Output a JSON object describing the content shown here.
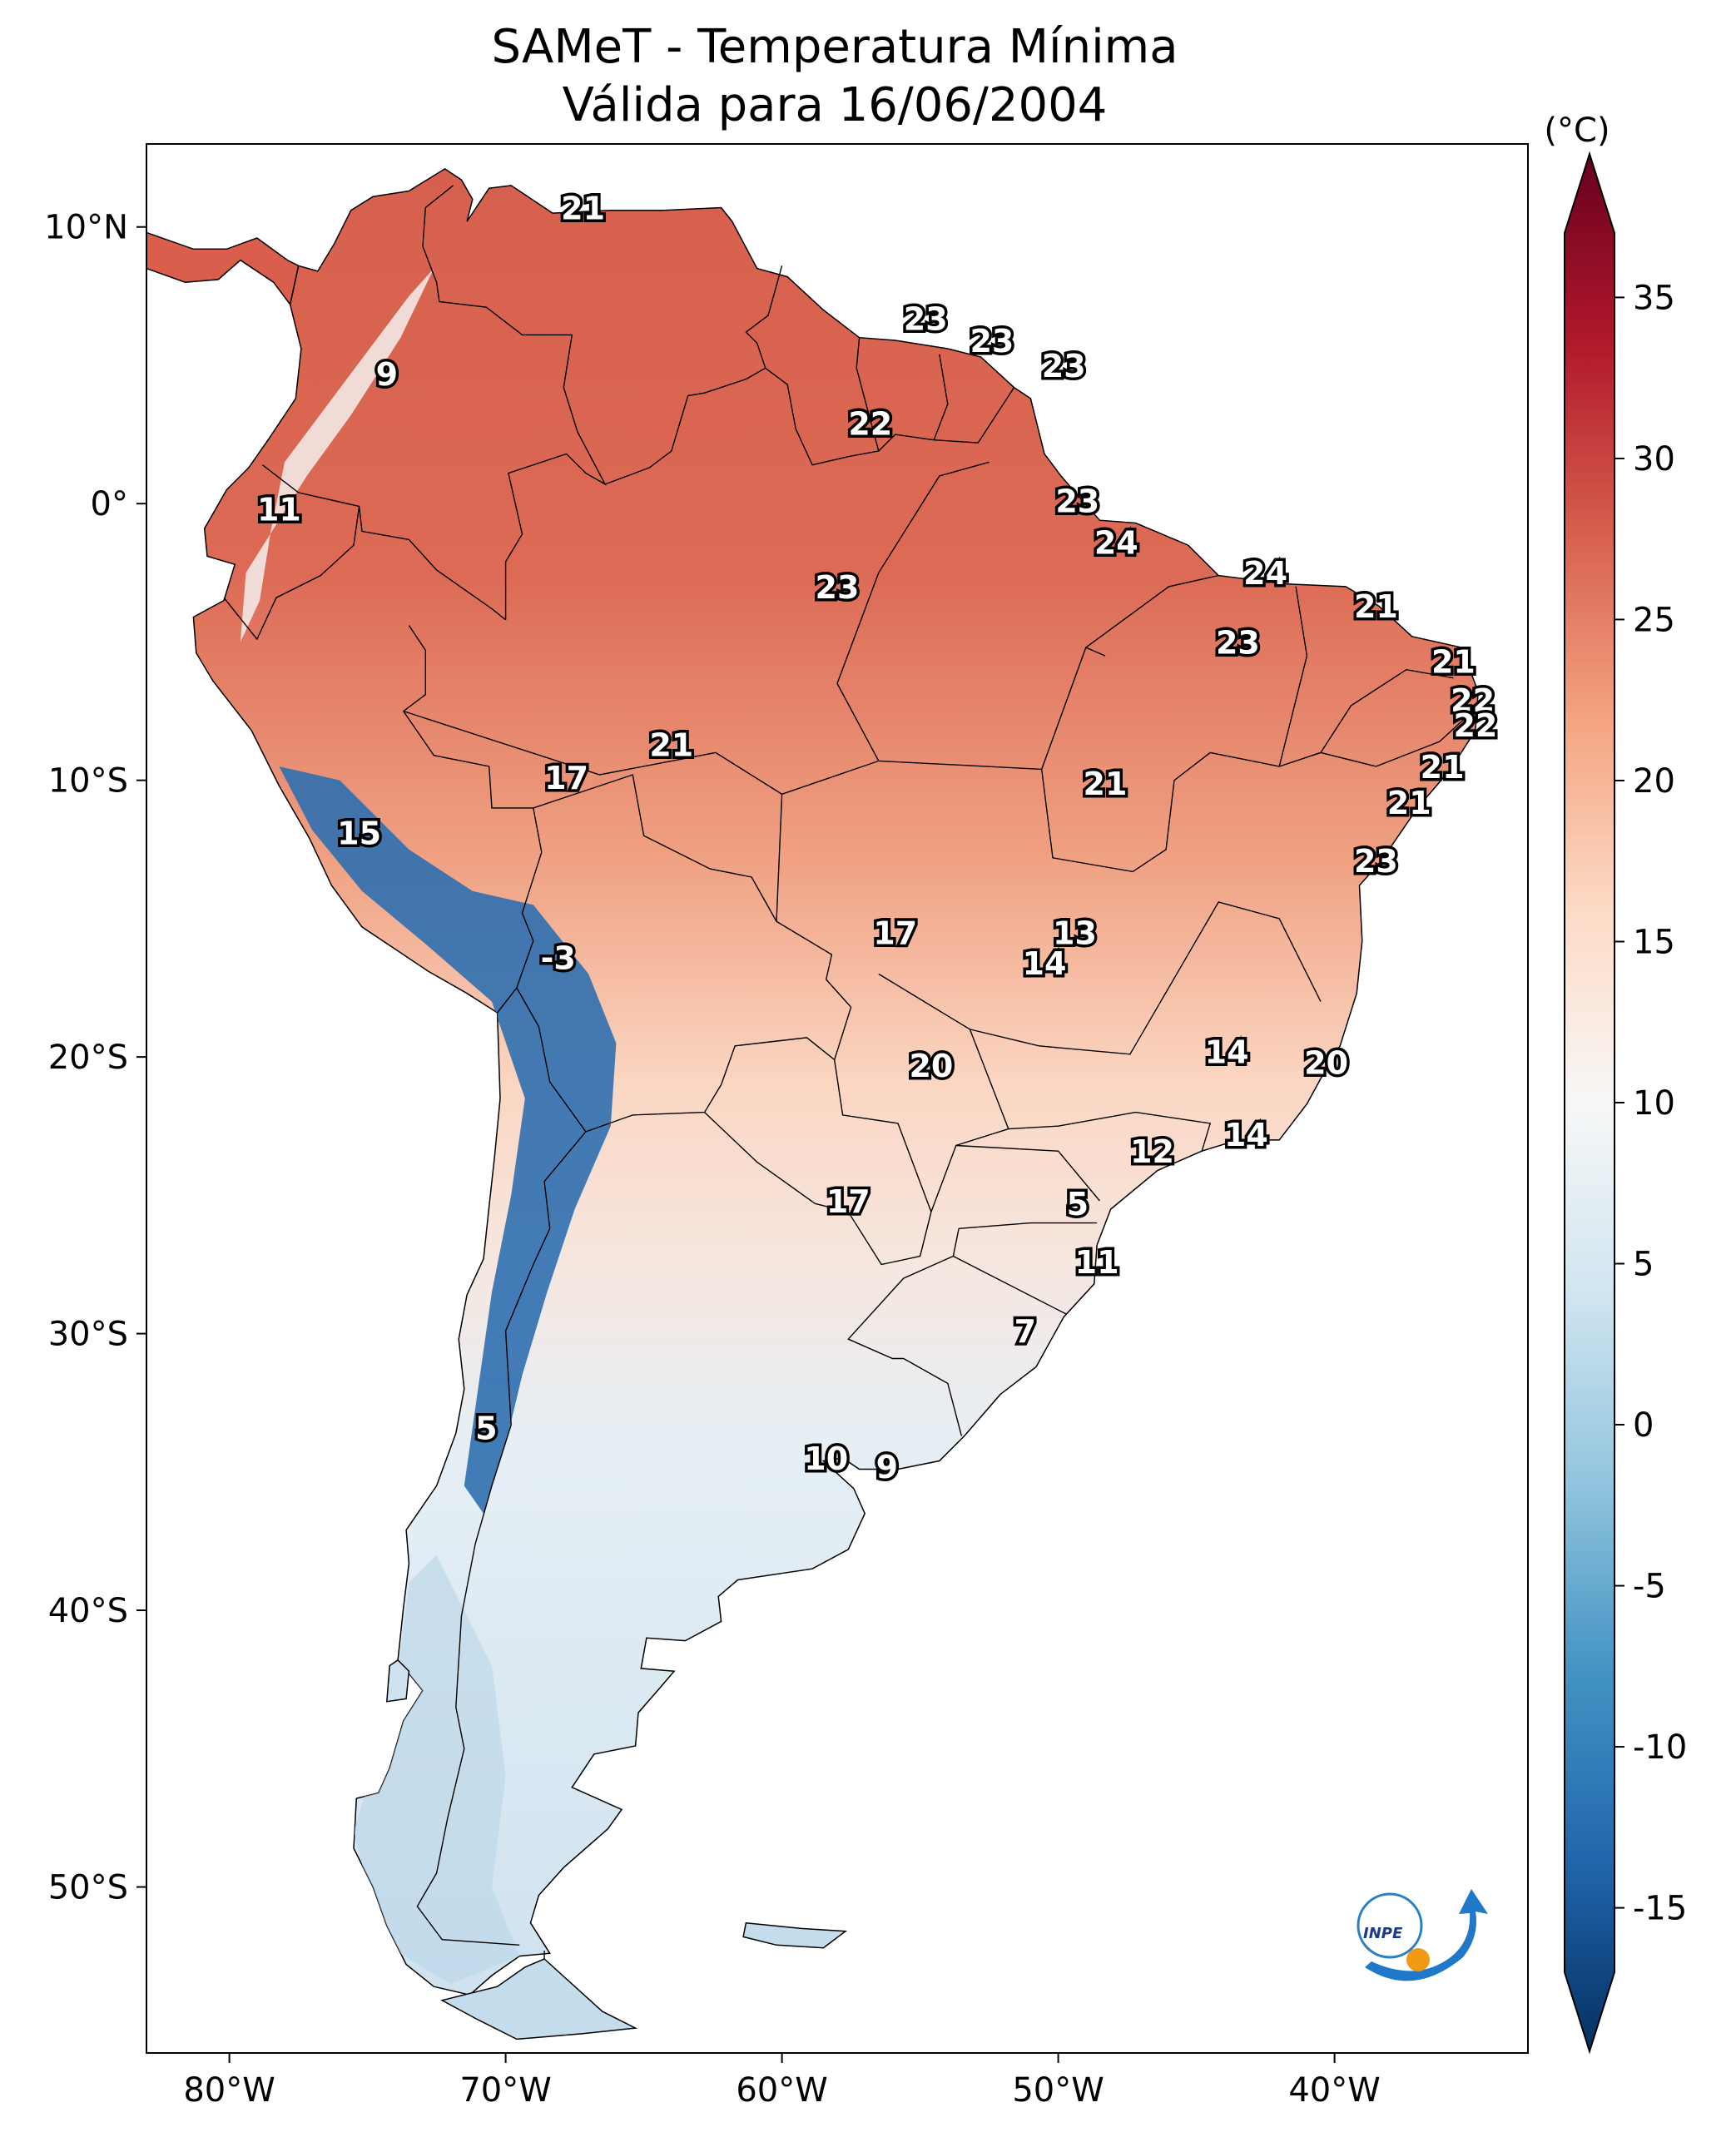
{
  "title": {
    "line1": "SAMeT - Temperatura Mínima",
    "line2": "Válida para 16/06/2004"
  },
  "colorbar": {
    "unit_label": "(°C)",
    "ticks": [
      "35",
      "30",
      "25",
      "20",
      "15",
      "10",
      "5",
      "0",
      "-5",
      "-10",
      "-15"
    ],
    "range": [
      -17,
      37
    ],
    "colormap": "RdBu_r"
  },
  "axes": {
    "lon_ticks": [
      "80°W",
      "70°W",
      "60°W",
      "50°W",
      "40°W"
    ],
    "lat_ticks": [
      "10°N",
      "0°",
      "10°S",
      "20°S",
      "30°S",
      "40°S",
      "50°S"
    ],
    "lon_range": [
      -83,
      -33
    ],
    "lat_range": [
      -56,
      13
    ]
  },
  "logo": {
    "text": "INPE"
  },
  "chart_data": {
    "type": "heatmap",
    "variable": "Temperatura Mínima",
    "unit": "°C",
    "point_values": [
      {
        "lon": -67.2,
        "lat": 10.6,
        "value": "21"
      },
      {
        "lon": -54.8,
        "lat": 6.6,
        "value": "23"
      },
      {
        "lon": -52.4,
        "lat": 5.8,
        "value": "23"
      },
      {
        "lon": -49.8,
        "lat": 4.9,
        "value": "23"
      },
      {
        "lon": -74.3,
        "lat": 4.6,
        "value": "9"
      },
      {
        "lon": -56.8,
        "lat": 2.8,
        "value": "22"
      },
      {
        "lon": -78.2,
        "lat": -0.3,
        "value": "11"
      },
      {
        "lon": -49.3,
        "lat": 0.0,
        "value": "23"
      },
      {
        "lon": -47.9,
        "lat": -1.5,
        "value": "24"
      },
      {
        "lon": -42.5,
        "lat": -2.6,
        "value": "24"
      },
      {
        "lon": -38.5,
        "lat": -3.8,
        "value": "21"
      },
      {
        "lon": -58.0,
        "lat": -3.1,
        "value": "23"
      },
      {
        "lon": -43.5,
        "lat": -5.1,
        "value": "23"
      },
      {
        "lon": -35.7,
        "lat": -5.8,
        "value": "21"
      },
      {
        "lon": -35.0,
        "lat": -7.2,
        "value": "22"
      },
      {
        "lon": -34.9,
        "lat": -8.1,
        "value": "22"
      },
      {
        "lon": -36.1,
        "lat": -9.6,
        "value": "21"
      },
      {
        "lon": -37.3,
        "lat": -10.9,
        "value": "21"
      },
      {
        "lon": -64.0,
        "lat": -8.8,
        "value": "21"
      },
      {
        "lon": -67.8,
        "lat": -10.0,
        "value": "17"
      },
      {
        "lon": -48.3,
        "lat": -10.2,
        "value": "21"
      },
      {
        "lon": -75.3,
        "lat": -12.0,
        "value": "15"
      },
      {
        "lon": -38.5,
        "lat": -13.0,
        "value": "23"
      },
      {
        "lon": -49.4,
        "lat": -15.6,
        "value": "13"
      },
      {
        "lon": -50.5,
        "lat": -16.7,
        "value": "14"
      },
      {
        "lon": -55.9,
        "lat": -15.6,
        "value": "17"
      },
      {
        "lon": -68.1,
        "lat": -16.5,
        "value": "-3"
      },
      {
        "lon": -43.9,
        "lat": -19.9,
        "value": "14"
      },
      {
        "lon": -40.3,
        "lat": -20.3,
        "value": "20"
      },
      {
        "lon": -54.6,
        "lat": -20.4,
        "value": "20"
      },
      {
        "lon": -43.2,
        "lat": -22.9,
        "value": "14"
      },
      {
        "lon": -46.6,
        "lat": -23.5,
        "value": "12"
      },
      {
        "lon": -49.3,
        "lat": -25.4,
        "value": "5"
      },
      {
        "lon": -57.6,
        "lat": -25.3,
        "value": "17"
      },
      {
        "lon": -48.6,
        "lat": -27.5,
        "value": "11"
      },
      {
        "lon": -51.2,
        "lat": -30.0,
        "value": "7"
      },
      {
        "lon": -70.7,
        "lat": -33.5,
        "value": "5"
      },
      {
        "lon": -58.4,
        "lat": -34.6,
        "value": "10"
      },
      {
        "lon": -56.2,
        "lat": -34.9,
        "value": "9"
      }
    ]
  }
}
